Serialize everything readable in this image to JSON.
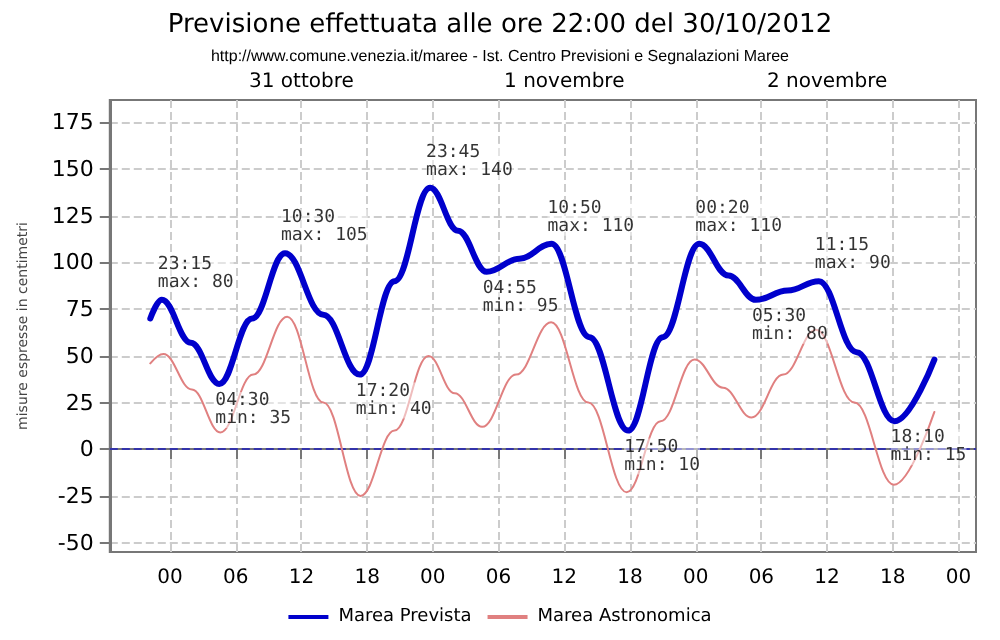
{
  "chart_data": {
    "type": "line",
    "title": "Previsione effettuata alle ore 22:00 del 30/10/2012",
    "subtitle": "http://www.comune.venezia.it/maree - Ist. Centro Previsioni e Segnalazioni Maree",
    "ylabel": "misure espresse in centimetri",
    "xlim": [
      "2012-10-30T18:30",
      "2012-11-03T01:36"
    ],
    "xticks": [
      {
        "value": "2012-10-31T00:00",
        "label": "00"
      },
      {
        "value": "2012-10-31T06:00",
        "label": "06"
      },
      {
        "value": "2012-10-31T12:00",
        "label": "12"
      },
      {
        "value": "2012-10-31T18:00",
        "label": "18"
      },
      {
        "value": "2012-11-01T00:00",
        "label": "00"
      },
      {
        "value": "2012-11-01T06:00",
        "label": "06"
      },
      {
        "value": "2012-11-01T12:00",
        "label": "12"
      },
      {
        "value": "2012-11-01T18:00",
        "label": "18"
      },
      {
        "value": "2012-11-02T00:00",
        "label": "00"
      },
      {
        "value": "2012-11-02T06:00",
        "label": "06"
      },
      {
        "value": "2012-11-02T12:00",
        "label": "12"
      },
      {
        "value": "2012-11-02T18:00",
        "label": "18"
      },
      {
        "value": "2012-11-03T00:00",
        "label": "00"
      }
    ],
    "x2lim": [
      "2012-10-30T18:30",
      "2012-11-03T01:36"
    ],
    "x2ticks": [
      {
        "value": "2012-10-31T12:00",
        "label": "31 ottobre"
      },
      {
        "value": "2012-11-01T12:00",
        "label": "1 novembre"
      },
      {
        "value": "2012-11-02T12:00",
        "label": "2 novembre"
      }
    ],
    "ylim": [
      -55,
      187
    ],
    "yticks": [
      -50,
      -25,
      0,
      25,
      50,
      75,
      100,
      125,
      150,
      175
    ],
    "grid": true,
    "legend": "bottom",
    "marker": "none",
    "line_style": "solid",
    "series": [
      {
        "name": "Marea Prevista",
        "color": "#0000cc",
        "x": [
          "2012-10-30T22:12",
          "2012-10-30T23:15",
          "2012-10-31T01:54",
          "2012-10-31T04:30",
          "2012-10-31T07:30",
          "2012-10-31T10:30",
          "2012-10-31T14:00",
          "2012-10-31T17:20",
          "2012-10-31T20:30",
          "2012-10-31T23:45",
          "2012-11-01T02:18",
          "2012-11-01T04:55",
          "2012-11-01T07:54",
          "2012-11-01T10:50",
          "2012-11-01T14:18",
          "2012-11-01T17:50",
          "2012-11-01T21:00",
          "2012-11-02T00:20",
          "2012-11-02T03:00",
          "2012-11-02T05:30",
          "2012-11-02T08:24",
          "2012-11-02T11:15",
          "2012-11-02T14:42",
          "2012-11-02T18:10",
          "2012-11-02T21:48"
        ],
        "values": [
          70,
          80,
          57,
          35,
          70,
          105,
          72,
          40,
          90,
          140,
          117,
          95,
          102,
          110,
          60,
          10,
          60,
          110,
          93,
          80,
          85,
          90,
          52,
          15,
          48
        ]
      },
      {
        "name": "Marea Astronomica",
        "color": "#e08080",
        "x": [
          "2012-10-30T22:12",
          "2012-10-30T23:24",
          "2012-10-31T02:00",
          "2012-10-31T04:36",
          "2012-10-31T07:36",
          "2012-10-31T10:42",
          "2012-10-31T14:00",
          "2012-10-31T17:24",
          "2012-10-31T20:30",
          "2012-10-31T23:36",
          "2012-11-01T02:00",
          "2012-11-01T04:30",
          "2012-11-01T07:36",
          "2012-11-01T10:48",
          "2012-11-01T14:12",
          "2012-11-01T17:42",
          "2012-11-01T20:48",
          "2012-11-01T23:54",
          "2012-11-02T02:30",
          "2012-11-02T05:06",
          "2012-11-02T08:00",
          "2012-11-02T11:00",
          "2012-11-02T14:30",
          "2012-11-02T18:06",
          "2012-11-02T21:48"
        ],
        "values": [
          46,
          51,
          32,
          9,
          40,
          71,
          25,
          -25,
          10,
          50,
          30,
          12,
          40,
          68,
          25,
          -23,
          15,
          48,
          33,
          17,
          40,
          64,
          25,
          -19,
          20
        ]
      }
    ],
    "ref_lines": [
      {
        "axis": "y",
        "value": 0,
        "color": "#3333aa",
        "line_style": "dashed"
      }
    ],
    "annotations": [
      {
        "text": "23:15\nmax: 80",
        "x": "2012-10-30T23:15",
        "y": 80
      },
      {
        "text": "04:30\nmin: 35",
        "x": "2012-10-31T04:30",
        "y": 35
      },
      {
        "text": "10:30\nmax: 105",
        "x": "2012-10-31T10:30",
        "y": 105
      },
      {
        "text": "17:20\nmin: 40",
        "x": "2012-10-31T17:20",
        "y": 40
      },
      {
        "text": "23:45\nmax: 140",
        "x": "2012-10-31T23:45",
        "y": 140
      },
      {
        "text": "04:55\nmin: 95",
        "x": "2012-11-01T04:55",
        "y": 95
      },
      {
        "text": "10:50\nmax: 110",
        "x": "2012-11-01T10:50",
        "y": 110
      },
      {
        "text": "17:50\nmin: 10",
        "x": "2012-11-01T17:50",
        "y": 10
      },
      {
        "text": "00:20\nmax: 110",
        "x": "2012-11-02T00:20",
        "y": 110
      },
      {
        "text": "05:30\nmin: 80",
        "x": "2012-11-02T05:30",
        "y": 80
      },
      {
        "text": "11:15\nmax: 90",
        "x": "2012-11-02T11:15",
        "y": 90
      },
      {
        "text": "18:10\nmin: 15",
        "x": "2012-11-02T18:10",
        "y": 15
      }
    ]
  }
}
